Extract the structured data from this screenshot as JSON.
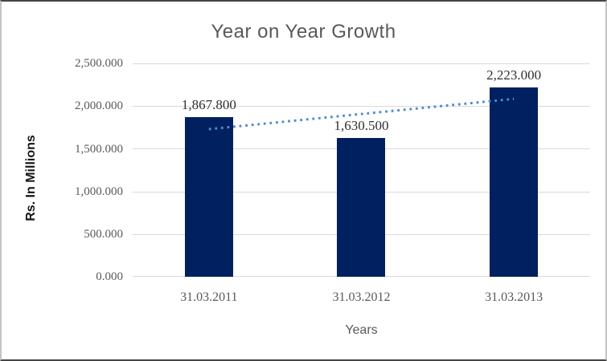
{
  "chart_data": {
    "type": "bar",
    "title": "Year on Year Growth",
    "xlabel": "Years",
    "ylabel": "Rs. In Millions",
    "categories": [
      "31.03.2011",
      "31.03.2012",
      "31.03.2013"
    ],
    "values": [
      1867.8,
      1630.5,
      2223.0
    ],
    "value_labels": [
      "1,867.800",
      "1,630.500",
      "2,223.000"
    ],
    "ytick_labels": [
      "2,500.000",
      "2,000.000",
      "1,500.000",
      "1,000.000",
      "500.000",
      "0.000"
    ],
    "ylim": [
      0,
      2500
    ],
    "grid": "horizontal",
    "legend": "none",
    "trendline": {
      "type": "linear",
      "style": "dotted",
      "color": "#4f8bcf"
    },
    "colors": {
      "bar": "#002060",
      "gridline": "#d9d9d9",
      "title_text": "#595959",
      "tick_text": "#595959",
      "data_label_text": "#303030",
      "axis_label_text": "#141414"
    }
  }
}
